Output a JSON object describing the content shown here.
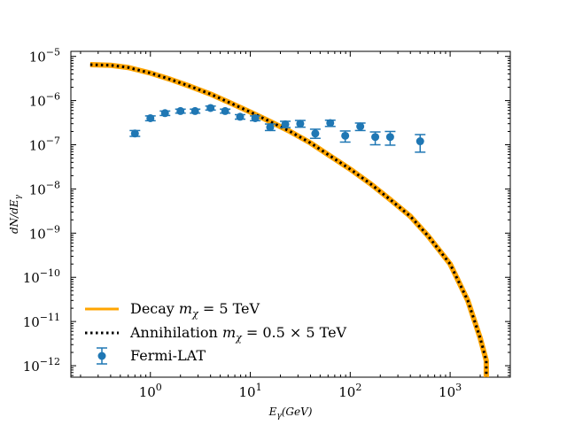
{
  "chart_data": {
    "type": "line",
    "xlabel": "E_γ(GeV)",
    "ylabel": "dN/dE_γ",
    "x_scale": "log",
    "y_scale": "log",
    "xlim": [
      0.16,
      4000
    ],
    "ylim": [
      5.5e-13,
      1.3e-05
    ],
    "grid": false,
    "legend_position": "lower-left",
    "x_ticks": [
      {
        "value": 1,
        "base": "10",
        "exp": "0"
      },
      {
        "value": 10,
        "base": "10",
        "exp": "1"
      },
      {
        "value": 100,
        "base": "10",
        "exp": "2"
      },
      {
        "value": 1000,
        "base": "10",
        "exp": "3"
      }
    ],
    "y_ticks": [
      {
        "value": 1e-05,
        "base": "10",
        "exp": "−5"
      },
      {
        "value": 1e-06,
        "base": "10",
        "exp": "−6"
      },
      {
        "value": 1e-07,
        "base": "10",
        "exp": "−7"
      },
      {
        "value": 1e-08,
        "base": "10",
        "exp": "−8"
      },
      {
        "value": 1e-09,
        "base": "10",
        "exp": "−9"
      },
      {
        "value": 1e-10,
        "base": "10",
        "exp": "−10"
      },
      {
        "value": 1e-11,
        "base": "10",
        "exp": "−11"
      },
      {
        "value": 1e-12,
        "base": "10",
        "exp": "−12"
      }
    ],
    "series": [
      {
        "name": "Decay m_χ = 5 TeV",
        "kind": "line",
        "color": "#ffa500",
        "style": "solid",
        "x": [
          0.25,
          0.4,
          0.6,
          1,
          1.6,
          2.5,
          4,
          6,
          10,
          16,
          25,
          40,
          60,
          100,
          160,
          250,
          400,
          600,
          1000,
          1500,
          2000,
          2300,
          2300
        ],
        "y": [
          6.5e-06,
          6.3e-06,
          5.6e-06,
          4.2e-06,
          3e-06,
          2.1e-06,
          1.4e-06,
          9.3e-07,
          5.5e-07,
          3.3e-07,
          2e-07,
          1.1e-07,
          6e-08,
          2.8e-08,
          1.3e-08,
          5.8e-09,
          2.4e-09,
          8.7e-10,
          2e-10,
          3e-11,
          4.2e-12,
          1.3e-12,
          5.5e-13
        ]
      },
      {
        "name": "Annihilation m_χ = 0.5 × 5 TeV",
        "kind": "line",
        "color": "#000000",
        "style": "dotted",
        "x": [
          0.25,
          0.4,
          0.6,
          1,
          1.6,
          2.5,
          4,
          6,
          10,
          16,
          25,
          40,
          60,
          100,
          160,
          250,
          400,
          600,
          1000,
          1500,
          2000,
          2300,
          2300
        ],
        "y": [
          6.5e-06,
          6.3e-06,
          5.6e-06,
          4.2e-06,
          3e-06,
          2.1e-06,
          1.4e-06,
          9.3e-07,
          5.5e-07,
          3.3e-07,
          2e-07,
          1.1e-07,
          6e-08,
          2.8e-08,
          1.3e-08,
          5.8e-09,
          2.4e-09,
          8.7e-10,
          2e-10,
          3e-11,
          4.2e-12,
          1.3e-12,
          5.5e-13
        ]
      },
      {
        "name": "Fermi-LAT",
        "kind": "errorbar",
        "color": "#1f77b4",
        "x": [
          0.7,
          1.0,
          1.4,
          2.0,
          2.8,
          4.0,
          5.6,
          7.9,
          11.2,
          15.8,
          22.4,
          31.6,
          44.7,
          63.1,
          89.1,
          126,
          178,
          251,
          501
        ],
        "y": [
          1.8e-07,
          4e-07,
          5.2e-07,
          5.8e-07,
          5.8e-07,
          6.8e-07,
          5.8e-07,
          4.3e-07,
          4e-07,
          2.5e-07,
          2.9e-07,
          3e-07,
          1.8e-07,
          3.1e-07,
          1.6e-07,
          2.6e-07,
          1.5e-07,
          1.5e-07,
          1.2e-07
        ],
        "y_lower": [
          1.55e-07,
          3.5e-07,
          4.6e-07,
          5.2e-07,
          5.2e-07,
          6.1e-07,
          5.2e-07,
          3.8e-07,
          3.5e-07,
          2.1e-07,
          2.45e-07,
          2.5e-07,
          1.4e-07,
          2.6e-07,
          1.15e-07,
          2.1e-07,
          1e-07,
          9.8e-08,
          6.8e-08
        ],
        "y_upper": [
          2.1e-07,
          4.5e-07,
          5.8e-07,
          6.4e-07,
          6.4e-07,
          7.5e-07,
          6.4e-07,
          4.8e-07,
          4.5e-07,
          2.95e-07,
          3.4e-07,
          3.55e-07,
          2.25e-07,
          3.6e-07,
          2.05e-07,
          3.1e-07,
          1.95e-07,
          2e-07,
          1.7e-07
        ]
      }
    ],
    "legend": [
      {
        "series": 0,
        "prefix": "Decay ",
        "math": "m",
        "sub": "χ",
        "rest": " = 5 TeV"
      },
      {
        "series": 1,
        "prefix": "Annihilation ",
        "math": "m",
        "sub": "χ",
        "rest": " = 0.5 × 5 TeV"
      },
      {
        "series": 2,
        "prefix": "Fermi-LAT",
        "math": "",
        "sub": "",
        "rest": ""
      }
    ]
  }
}
